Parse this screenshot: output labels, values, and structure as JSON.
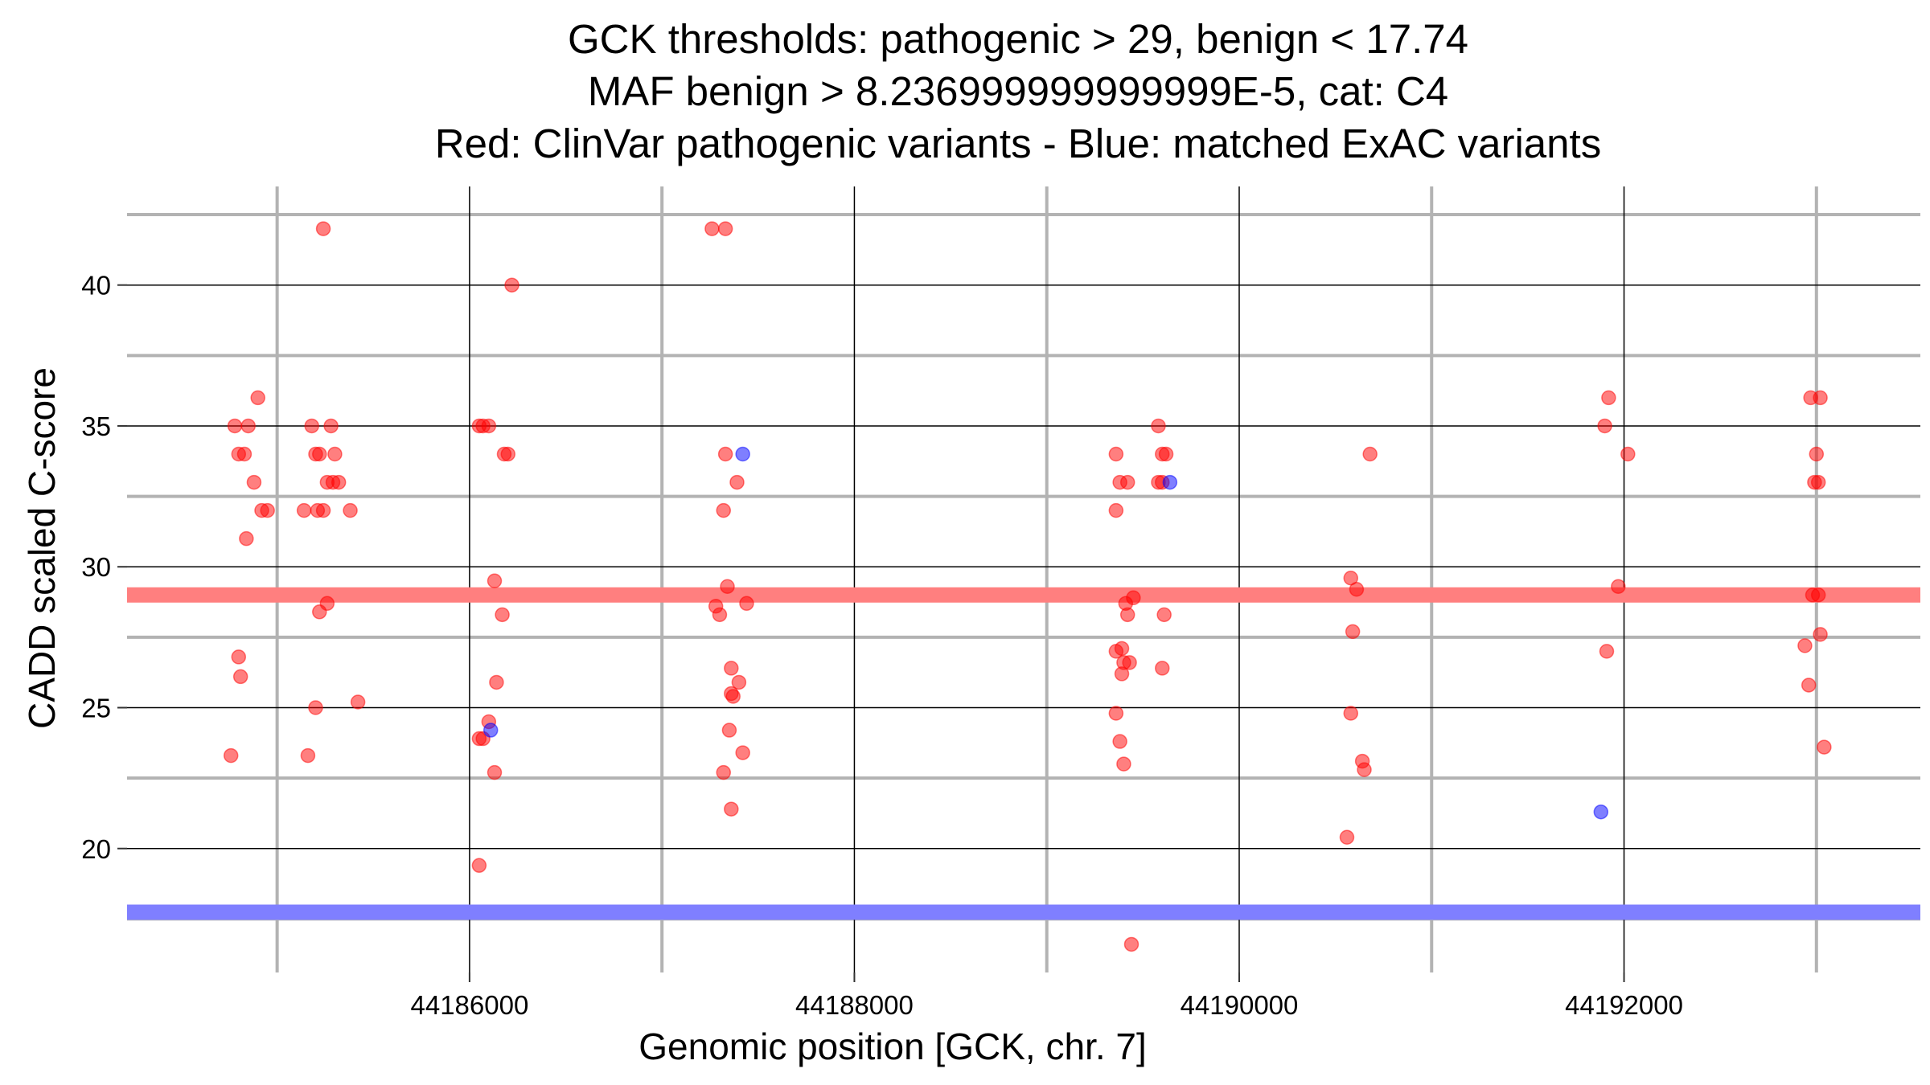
{
  "chart_data": {
    "type": "scatter",
    "title_lines": [
      "GCK thresholds: pathogenic > 29, benign < 17.74",
      "MAF benign > 8.236999999999999E-5, cat: C4",
      "Red: ClinVar pathogenic variants - Blue: matched ExAC variants"
    ],
    "xlabel": "Genomic position [GCK, chr. 7]",
    "ylabel": "CADD scaled C-score",
    "xlim": [
      44184220,
      44193540
    ],
    "ylim": [
      15.6,
      43.5
    ],
    "x_ticks": [
      44186000,
      44188000,
      44190000,
      44192000
    ],
    "x_tick_labels": [
      "44186000",
      "44188000",
      "44190000",
      "44192000"
    ],
    "y_ticks": [
      20,
      25,
      30,
      35,
      40
    ],
    "y_tick_labels": [
      "20",
      "25",
      "30",
      "35",
      "40"
    ],
    "y_minor_grid": [
      17.5,
      22.5,
      27.5,
      32.5,
      37.5,
      42.5
    ],
    "x_minor_grid": [
      44185000,
      44187000,
      44189000,
      44191000,
      44193000
    ],
    "thresholds": [
      {
        "name": "pathogenic",
        "value": 29,
        "color": "#ff7f7f"
      },
      {
        "name": "benign",
        "value": 17.74,
        "color": "#7f7fff"
      }
    ],
    "series": [
      {
        "name": "ClinVar pathogenic variants",
        "color": "#ff0000",
        "points": [
          [
            44184780,
            35
          ],
          [
            44184800,
            34
          ],
          [
            44184830,
            34
          ],
          [
            44184850,
            35
          ],
          [
            44184880,
            33
          ],
          [
            44184900,
            36
          ],
          [
            44184920,
            32
          ],
          [
            44184950,
            32
          ],
          [
            44184840,
            31
          ],
          [
            44184800,
            26.8
          ],
          [
            44184810,
            26.1
          ],
          [
            44184760,
            23.3
          ],
          [
            44185140,
            32
          ],
          [
            44185160,
            23.3
          ],
          [
            44185180,
            35
          ],
          [
            44185200,
            34
          ],
          [
            44185220,
            34
          ],
          [
            44185240,
            32
          ],
          [
            44185260,
            33
          ],
          [
            44185280,
            35
          ],
          [
            44185290,
            33
          ],
          [
            44185300,
            34
          ],
          [
            44185320,
            33
          ],
          [
            44185210,
            32
          ],
          [
            44185240,
            42
          ],
          [
            44185380,
            32
          ],
          [
            44185260,
            28.7
          ],
          [
            44185220,
            28.4
          ],
          [
            44185200,
            25
          ],
          [
            44185420,
            25.2
          ],
          [
            44186050,
            35
          ],
          [
            44186070,
            35
          ],
          [
            44186100,
            35
          ],
          [
            44186180,
            34
          ],
          [
            44186200,
            34
          ],
          [
            44186220,
            40
          ],
          [
            44186130,
            29.5
          ],
          [
            44186170,
            28.3
          ],
          [
            44186140,
            25.9
          ],
          [
            44186100,
            24.5
          ],
          [
            44186050,
            23.9
          ],
          [
            44186070,
            23.9
          ],
          [
            44186130,
            22.7
          ],
          [
            44186050,
            19.4
          ],
          [
            44187260,
            42
          ],
          [
            44187330,
            42
          ],
          [
            44187330,
            34
          ],
          [
            44187390,
            33
          ],
          [
            44187320,
            32
          ],
          [
            44187340,
            29.3
          ],
          [
            44187280,
            28.6
          ],
          [
            44187300,
            28.3
          ],
          [
            44187440,
            28.7
          ],
          [
            44187360,
            26.4
          ],
          [
            44187400,
            25.9
          ],
          [
            44187360,
            25.5
          ],
          [
            44187370,
            25.4
          ],
          [
            44187350,
            24.2
          ],
          [
            44187420,
            23.4
          ],
          [
            44187320,
            22.7
          ],
          [
            44187360,
            21.4
          ],
          [
            44189360,
            34
          ],
          [
            44189380,
            33
          ],
          [
            44189420,
            33
          ],
          [
            44189360,
            32
          ],
          [
            44189580,
            35
          ],
          [
            44189600,
            34
          ],
          [
            44189620,
            34
          ],
          [
            44189580,
            33
          ],
          [
            44189600,
            33
          ],
          [
            44189450,
            28.9
          ],
          [
            44189410,
            28.7
          ],
          [
            44189420,
            28.3
          ],
          [
            44189610,
            28.3
          ],
          [
            44189360,
            27
          ],
          [
            44189390,
            27.1
          ],
          [
            44189400,
            26.6
          ],
          [
            44189430,
            26.6
          ],
          [
            44189390,
            26.2
          ],
          [
            44189600,
            26.4
          ],
          [
            44189360,
            24.8
          ],
          [
            44189380,
            23.8
          ],
          [
            44189400,
            23
          ],
          [
            44189440,
            16.6
          ],
          [
            44190580,
            29.6
          ],
          [
            44190610,
            29.2
          ],
          [
            44190590,
            27.7
          ],
          [
            44190580,
            24.8
          ],
          [
            44190640,
            23.1
          ],
          [
            44190650,
            22.8
          ],
          [
            44190560,
            20.4
          ],
          [
            44190680,
            34
          ],
          [
            44191920,
            36
          ],
          [
            44191900,
            35
          ],
          [
            44192020,
            34
          ],
          [
            44191970,
            29.3
          ],
          [
            44191910,
            27
          ],
          [
            44192970,
            36
          ],
          [
            44193020,
            36
          ],
          [
            44193000,
            34
          ],
          [
            44192990,
            33
          ],
          [
            44193010,
            33
          ],
          [
            44192980,
            29
          ],
          [
            44193010,
            29
          ],
          [
            44192940,
            27.2
          ],
          [
            44193020,
            27.6
          ],
          [
            44192960,
            25.8
          ],
          [
            44193040,
            23.6
          ]
        ]
      },
      {
        "name": "matched ExAC variants",
        "color": "#0000ff",
        "points": [
          [
            44187420,
            34
          ],
          [
            44189640,
            33
          ],
          [
            44186110,
            24.2
          ],
          [
            44191880,
            21.3
          ]
        ]
      }
    ]
  }
}
